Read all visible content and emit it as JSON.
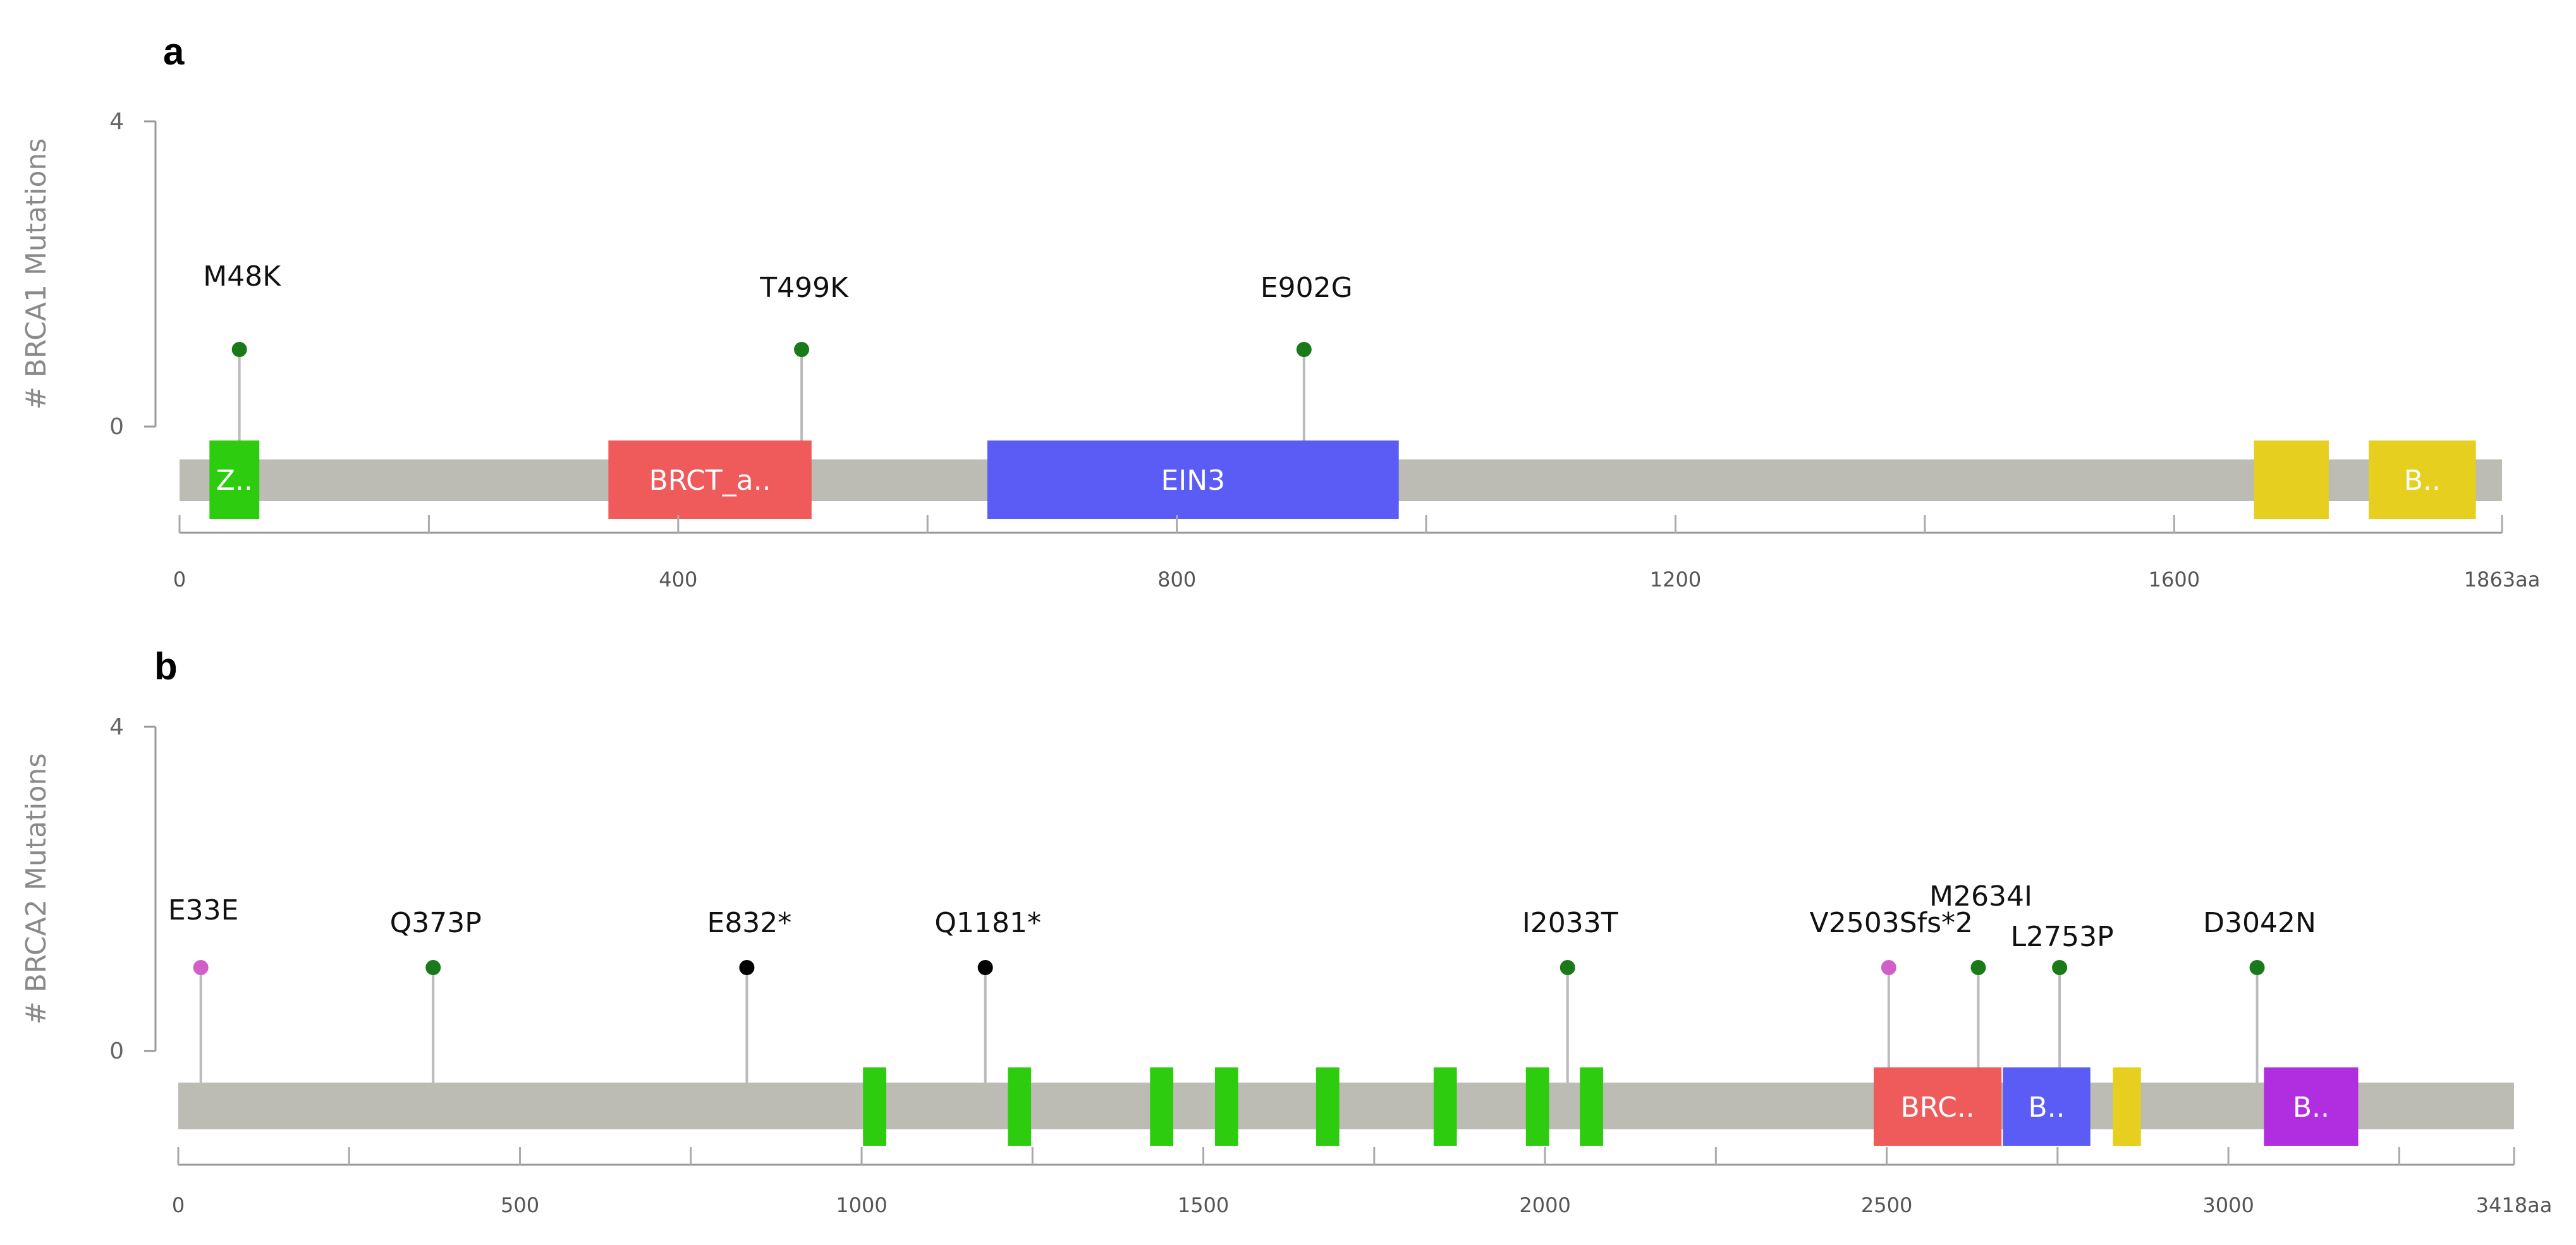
{
  "colors": {
    "protein_bar": "#bcbcb4",
    "missense": "#1a7a1a",
    "truncating": "#000000",
    "other": "#d060c8",
    "axis": "#999999"
  },
  "panels": [
    {
      "letter": "a",
      "ylabel": "# BRCA1 Mutations",
      "yticks": [
        "4",
        "0"
      ],
      "length": 1863,
      "xticks": [
        {
          "value": 0,
          "label": "0"
        },
        {
          "value": 200,
          "label": ""
        },
        {
          "value": 400,
          "label": "400"
        },
        {
          "value": 600,
          "label": ""
        },
        {
          "value": 800,
          "label": "800"
        },
        {
          "value": 1000,
          "label": ""
        },
        {
          "value": 1200,
          "label": "1200"
        },
        {
          "value": 1400,
          "label": ""
        },
        {
          "value": 1600,
          "label": "1600"
        },
        {
          "value": 1863,
          "label": "1863aa"
        }
      ],
      "domains": [
        {
          "start": 24,
          "end": 64,
          "color": "#2ecc0e",
          "label": "Z.."
        },
        {
          "start": 344,
          "end": 507,
          "color": "#ef5a5a",
          "label": "BRCT_a.."
        },
        {
          "start": 648,
          "end": 978,
          "color": "#5b5cf5",
          "label": "EIN3"
        },
        {
          "start": 1664,
          "end": 1724,
          "color": "#e6cf1e",
          "label": ""
        },
        {
          "start": 1756,
          "end": 1842,
          "color": "#e6cf1e",
          "label": "B.."
        }
      ],
      "mutations": [
        {
          "pos": 48,
          "count": 1,
          "type": "missense",
          "label": "M48K"
        },
        {
          "pos": 499,
          "count": 1,
          "type": "missense",
          "label": "T499K"
        },
        {
          "pos": 902,
          "count": 1,
          "type": "missense",
          "label": "E902G"
        }
      ]
    },
    {
      "letter": "b",
      "ylabel": "# BRCA2 Mutations",
      "yticks": [
        "4",
        "0"
      ],
      "length": 3418,
      "xticks": [
        {
          "value": 0,
          "label": "0"
        },
        {
          "value": 250,
          "label": ""
        },
        {
          "value": 500,
          "label": "500"
        },
        {
          "value": 750,
          "label": ""
        },
        {
          "value": 1000,
          "label": "1000"
        },
        {
          "value": 1250,
          "label": ""
        },
        {
          "value": 1500,
          "label": "1500"
        },
        {
          "value": 1750,
          "label": ""
        },
        {
          "value": 2000,
          "label": "2000"
        },
        {
          "value": 2250,
          "label": ""
        },
        {
          "value": 2500,
          "label": "2500"
        },
        {
          "value": 2750,
          "label": ""
        },
        {
          "value": 3000,
          "label": "3000"
        },
        {
          "value": 3250,
          "label": ""
        },
        {
          "value": 3418,
          "label": "3418aa"
        }
      ],
      "domains": [
        {
          "start": 1002,
          "end": 1036,
          "color": "#2ecc0e",
          "label": ""
        },
        {
          "start": 1214,
          "end": 1248,
          "color": "#2ecc0e",
          "label": ""
        },
        {
          "start": 1422,
          "end": 1456,
          "color": "#2ecc0e",
          "label": ""
        },
        {
          "start": 1517,
          "end": 1551,
          "color": "#2ecc0e",
          "label": ""
        },
        {
          "start": 1665,
          "end": 1699,
          "color": "#2ecc0e",
          "label": ""
        },
        {
          "start": 1837,
          "end": 1871,
          "color": "#2ecc0e",
          "label": ""
        },
        {
          "start": 1972,
          "end": 2006,
          "color": "#2ecc0e",
          "label": ""
        },
        {
          "start": 2051,
          "end": 2085,
          "color": "#2ecc0e",
          "label": ""
        },
        {
          "start": 2481,
          "end": 2668,
          "color": "#ef5a5a",
          "label": "BRC.."
        },
        {
          "start": 2670,
          "end": 2798,
          "color": "#5b5cf5",
          "label": "B.."
        },
        {
          "start": 2831,
          "end": 2872,
          "color": "#e6cf1e",
          "label": ""
        },
        {
          "start": 3052,
          "end": 3190,
          "color": "#b12ee0",
          "label": "B.."
        }
      ],
      "mutations": [
        {
          "pos": 33,
          "count": 1,
          "type": "other",
          "label": "E33E"
        },
        {
          "pos": 373,
          "count": 1,
          "type": "missense",
          "label": "Q373P"
        },
        {
          "pos": 832,
          "count": 1,
          "type": "truncating",
          "label": "E832*"
        },
        {
          "pos": 1181,
          "count": 1,
          "type": "truncating",
          "label": "Q1181*"
        },
        {
          "pos": 2033,
          "count": 1,
          "type": "missense",
          "label": "I2033T"
        },
        {
          "pos": 2503,
          "count": 1,
          "type": "other",
          "label": "V2503Sfs*2"
        },
        {
          "pos": 2634,
          "count": 1,
          "type": "missense",
          "label": "M2634I"
        },
        {
          "pos": 2753,
          "count": 1,
          "type": "missense",
          "label": "L2753P"
        },
        {
          "pos": 3042,
          "count": 1,
          "type": "missense",
          "label": "D3042N"
        }
      ]
    }
  ]
}
